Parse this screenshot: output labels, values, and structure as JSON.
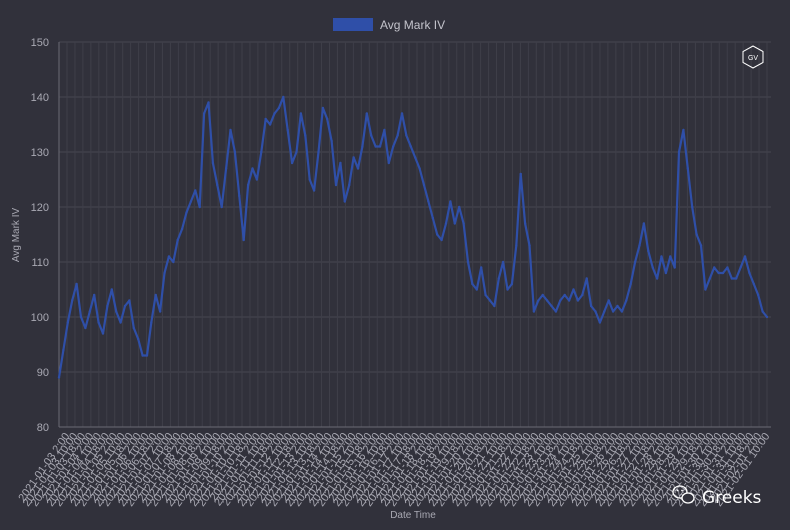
{
  "chart_data": {
    "type": "line",
    "title": "",
    "xlabel": "Date Time",
    "ylabel": "Avg Mark IV",
    "ylim": [
      80,
      150
    ],
    "yticks": [
      80,
      90,
      100,
      110,
      120,
      130,
      140,
      150
    ],
    "grid": true,
    "legend": "top-center",
    "x_tick_labels": [
      "2021-01-03  2:00",
      "2021-01-03 10:00",
      "2021-01-03 18:00",
      "2021-01-04  2:00",
      "2021-01-04 10:00",
      "2021-01-04 18:00",
      "2021-01-05  2:00",
      "2021-01-05 10:00",
      "2021-01-05 18:00",
      "2021-01-06  2:00",
      "2021-01-06 10:00",
      "2021-01-06 18:00",
      "2021-01-07  2:00",
      "2021-01-07 10:00",
      "2021-01-07 18:00",
      "2021-01-08  2:00",
      "2021-01-08 10:00",
      "2021-01-08 18:00",
      "2021-01-09  2:00",
      "2021-01-09 10:00",
      "2021-01-09 18:00",
      "2021-01-10  2:00",
      "2021-01-10 10:00",
      "2021-01-10 18:00",
      "2021-01-11  2:00",
      "2021-01-11 10:00",
      "2021-01-11 18:00",
      "2021-01-12  2:00",
      "2021-01-12 10:00",
      "2021-01-12 18:00",
      "2021-01-13  2:00",
      "2021-01-13 10:00",
      "2021-01-13 18:00",
      "2021-01-14  2:00",
      "2021-01-14 10:00",
      "2021-01-14 18:00",
      "2021-01-15  2:00",
      "2021-01-15 10:00",
      "2021-01-15 18:00",
      "2021-01-16  2:00",
      "2021-01-16 10:00",
      "2021-01-16 18:00",
      "2021-01-17  2:00",
      "2021-01-17 10:00",
      "2021-01-17 18:00",
      "2021-01-18  2:00",
      "2021-01-18 10:00",
      "2021-01-18 18:00",
      "2021-01-19  2:00",
      "2021-01-19 10:00",
      "2021-01-19 18:00",
      "2021-01-20  2:00",
      "2021-01-20 10:00",
      "2021-01-20 18:00",
      "2021-01-21  2:00",
      "2021-01-21 10:00",
      "2021-01-21 18:00",
      "2021-01-22  2:00",
      "2021-01-22 10:00",
      "2021-01-22 18:00",
      "2021-01-23  2:00",
      "2021-01-23 10:00",
      "2021-01-23 18:00",
      "2021-01-24  2:00",
      "2021-01-24 10:00",
      "2021-01-24 18:00",
      "2021-01-25  2:00",
      "2021-01-25 10:00",
      "2021-01-25 18:00",
      "2021-01-26  2:00",
      "2021-01-26 10:00",
      "2021-01-26 18:00",
      "2021-01-27  2:00",
      "2021-01-27 10:00",
      "2021-01-27 18:00",
      "2021-01-28  2:00",
      "2021-01-28 10:00",
      "2021-01-28 18:00",
      "2021-01-29  2:00",
      "2021-01-29 10:00",
      "2021-01-29 18:00",
      "2021-01-30  2:00",
      "2021-01-30 10:00",
      "2021-01-30 18:00",
      "2021-01-31  2:00",
      "2021-01-31 10:00",
      "2021-01-31 18:00",
      "2021-02-01  2:00",
      "2021-02-01 10:00"
    ],
    "series": [
      {
        "name": "Avg Mark IV",
        "color": "#2f4fa8",
        "values": [
          89,
          94,
          99,
          103,
          106,
          100,
          98,
          101,
          104,
          99,
          97,
          102,
          105,
          101,
          99,
          102,
          103,
          98,
          96,
          93,
          93,
          99,
          104,
          101,
          108,
          111,
          110,
          114,
          116,
          119,
          121,
          123,
          120,
          137,
          139,
          128,
          124,
          120,
          127,
          134,
          130,
          122,
          114,
          124,
          127,
          125,
          130,
          136,
          135,
          137,
          138,
          140,
          134,
          128,
          130,
          137,
          133,
          125,
          123,
          130,
          138,
          136,
          132,
          124,
          128,
          121,
          124,
          129,
          127,
          131,
          137,
          133,
          131,
          131,
          134,
          128,
          131,
          133,
          137,
          133,
          131,
          129,
          127,
          124,
          121,
          118,
          115,
          114,
          117,
          121,
          117,
          120,
          117,
          110,
          106,
          105,
          109,
          104,
          103,
          102,
          107,
          110,
          105,
          106,
          113,
          126,
          117,
          113,
          101,
          103,
          104,
          103,
          102,
          101,
          103,
          104,
          103,
          105,
          103,
          104,
          107,
          102,
          101,
          99,
          101,
          103,
          101,
          102,
          101,
          103,
          106,
          110,
          113,
          117,
          112,
          109,
          107,
          111,
          108,
          111,
          109,
          130,
          134,
          127,
          120,
          115,
          113,
          105,
          107,
          109,
          108,
          108,
          109,
          107,
          107,
          109,
          111,
          108,
          106,
          104,
          101,
          100
        ]
      }
    ]
  },
  "watermark": {
    "badge_text": "GV",
    "brand_text": "Greeks"
  }
}
